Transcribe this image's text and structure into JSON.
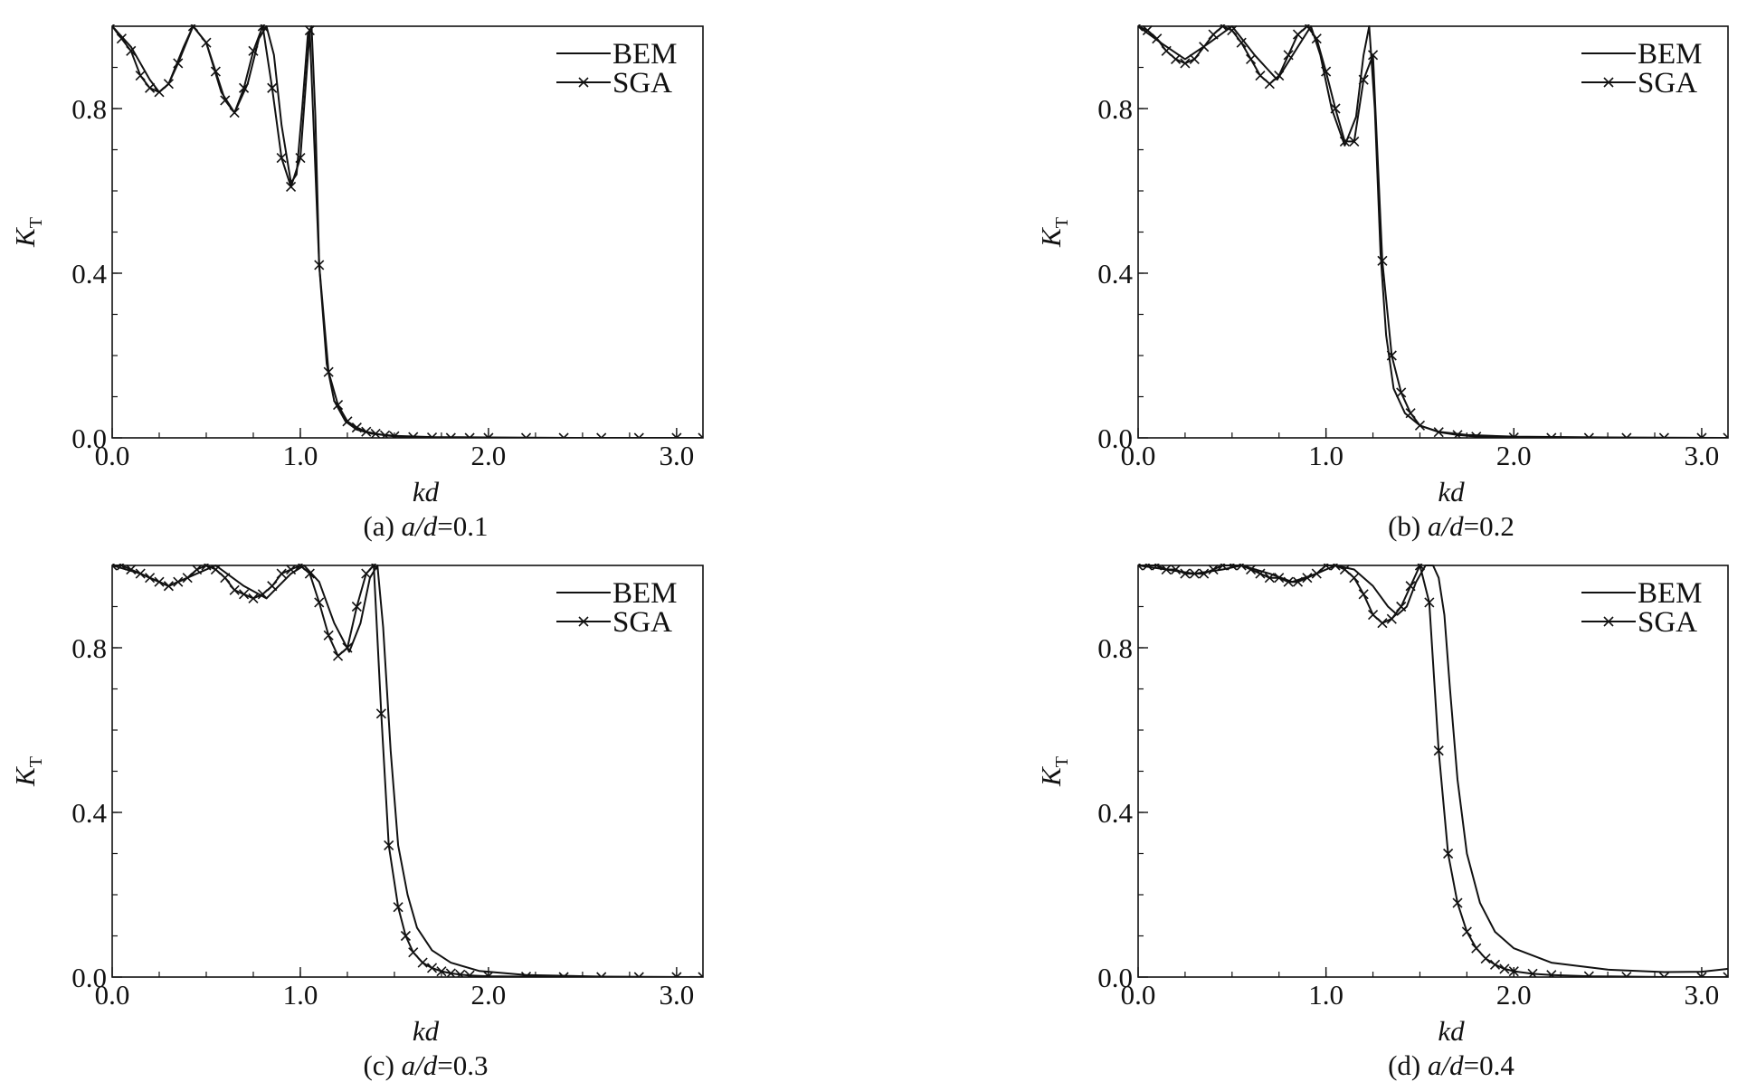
{
  "chart_data": [
    {
      "type": "line",
      "caption": {
        "label": "(a) ",
        "var": "a/d",
        "rest": "=0.1"
      },
      "xlabel": "kd",
      "ylabel": {
        "main": "K",
        "sub": "T"
      },
      "xlim": [
        0,
        3.14
      ],
      "ylim": [
        0,
        1.0
      ],
      "xticks": [
        "0.0",
        "1.0",
        "2.0",
        "3.0"
      ],
      "yticks": [
        "0.0",
        "0.4",
        "0.8"
      ],
      "legend": {
        "position": "top-right",
        "entries": [
          "BEM",
          "SGA"
        ]
      },
      "series": [
        {
          "name": "BEM",
          "marker": "none",
          "x": [
            0.0,
            0.1,
            0.2,
            0.25,
            0.3,
            0.38,
            0.43,
            0.5,
            0.58,
            0.65,
            0.72,
            0.78,
            0.82,
            0.86,
            0.9,
            0.95,
            0.98,
            1.01,
            1.04,
            1.06,
            1.08,
            1.1,
            1.14,
            1.18,
            1.24,
            1.3,
            1.38,
            1.5,
            1.7,
            2.0,
            2.5,
            3.14
          ],
          "y": [
            1.0,
            0.95,
            0.87,
            0.84,
            0.86,
            0.95,
            1.0,
            0.96,
            0.84,
            0.79,
            0.86,
            0.97,
            1.0,
            0.93,
            0.76,
            0.62,
            0.64,
            0.8,
            0.98,
            1.0,
            0.78,
            0.42,
            0.18,
            0.09,
            0.04,
            0.02,
            0.01,
            0.005,
            0.002,
            0.001,
            0.0,
            0.0
          ]
        },
        {
          "name": "SGA",
          "marker": "x",
          "x": [
            0.0,
            0.05,
            0.1,
            0.15,
            0.2,
            0.25,
            0.3,
            0.35,
            0.43,
            0.5,
            0.55,
            0.6,
            0.65,
            0.7,
            0.75,
            0.8,
            0.85,
            0.9,
            0.95,
            1.0,
            1.05,
            1.1,
            1.15,
            1.2,
            1.25,
            1.3,
            1.35,
            1.4,
            1.45,
            1.5,
            1.6,
            1.7,
            1.8,
            1.9,
            2.0,
            2.2,
            2.4,
            2.6,
            2.8,
            3.0,
            3.14
          ],
          "y": [
            1.0,
            0.97,
            0.94,
            0.88,
            0.85,
            0.84,
            0.86,
            0.91,
            1.0,
            0.96,
            0.89,
            0.82,
            0.79,
            0.85,
            0.94,
            1.0,
            0.85,
            0.68,
            0.61,
            0.68,
            0.99,
            0.42,
            0.16,
            0.08,
            0.04,
            0.025,
            0.015,
            0.01,
            0.006,
            0.004,
            0.002,
            0.001,
            0.0,
            0.0,
            0.0,
            0.0,
            0.0,
            0.0,
            0.0,
            0.0,
            0.0
          ]
        }
      ]
    },
    {
      "type": "line",
      "caption": {
        "label": "(b) ",
        "var": "a/d",
        "rest": "=0.2"
      },
      "xlabel": "kd",
      "ylabel": {
        "main": "K",
        "sub": "T"
      },
      "xlim": [
        0,
        3.14
      ],
      "ylim": [
        0,
        1.0
      ],
      "xticks": [
        "0.0",
        "1.0",
        "2.0",
        "3.0"
      ],
      "yticks": [
        "0.0",
        "0.4",
        "0.8"
      ],
      "legend": {
        "position": "top-right",
        "entries": [
          "BEM",
          "SGA"
        ]
      },
      "series": [
        {
          "name": "BEM",
          "marker": "none",
          "x": [
            0.0,
            0.12,
            0.25,
            0.38,
            0.5,
            0.62,
            0.74,
            0.85,
            0.92,
            0.97,
            1.03,
            1.1,
            1.16,
            1.2,
            1.23,
            1.26,
            1.29,
            1.32,
            1.36,
            1.42,
            1.5,
            1.6,
            1.75,
            2.0,
            2.5,
            3.14
          ],
          "y": [
            1.0,
            0.96,
            0.92,
            0.96,
            1.0,
            0.93,
            0.87,
            0.95,
            1.0,
            0.93,
            0.8,
            0.71,
            0.78,
            0.93,
            1.0,
            0.8,
            0.45,
            0.25,
            0.12,
            0.06,
            0.03,
            0.015,
            0.007,
            0.003,
            0.001,
            0.0
          ]
        },
        {
          "name": "SGA",
          "marker": "x",
          "x": [
            0.0,
            0.05,
            0.1,
            0.15,
            0.2,
            0.25,
            0.3,
            0.35,
            0.4,
            0.45,
            0.5,
            0.55,
            0.6,
            0.65,
            0.7,
            0.75,
            0.8,
            0.85,
            0.9,
            0.95,
            1.0,
            1.05,
            1.1,
            1.15,
            1.2,
            1.25,
            1.3,
            1.35,
            1.4,
            1.45,
            1.5,
            1.6,
            1.7,
            1.8,
            2.0,
            2.2,
            2.4,
            2.6,
            2.8,
            3.0,
            3.14
          ],
          "y": [
            1.0,
            0.99,
            0.97,
            0.94,
            0.92,
            0.91,
            0.92,
            0.95,
            0.98,
            1.0,
            0.99,
            0.96,
            0.92,
            0.88,
            0.86,
            0.88,
            0.93,
            0.98,
            1.0,
            0.97,
            0.89,
            0.8,
            0.72,
            0.72,
            0.87,
            0.93,
            0.43,
            0.2,
            0.11,
            0.06,
            0.03,
            0.014,
            0.007,
            0.003,
            0.001,
            0.0,
            0.0,
            0.0,
            0.0,
            0.0,
            0.0
          ]
        }
      ]
    },
    {
      "type": "line",
      "caption": {
        "label": "(c) ",
        "var": "a/d",
        "rest": "=0.3"
      },
      "xlabel": "kd",
      "ylabel": {
        "main": "K",
        "sub": "T"
      },
      "xlim": [
        0,
        3.14
      ],
      "ylim": [
        0,
        1.0
      ],
      "xticks": [
        "0.0",
        "1.0",
        "2.0",
        "3.0"
      ],
      "yticks": [
        "0.0",
        "0.4",
        "0.8"
      ],
      "legend": {
        "position": "top-right",
        "entries": [
          "BEM",
          "SGA"
        ]
      },
      "series": [
        {
          "name": "BEM",
          "marker": "none",
          "x": [
            0.0,
            0.15,
            0.3,
            0.45,
            0.55,
            0.7,
            0.82,
            0.95,
            1.02,
            1.1,
            1.18,
            1.26,
            1.32,
            1.37,
            1.41,
            1.44,
            1.48,
            1.52,
            1.57,
            1.62,
            1.7,
            1.8,
            1.95,
            2.2,
            2.6,
            3.14
          ],
          "y": [
            1.0,
            0.98,
            0.95,
            0.98,
            1.0,
            0.95,
            0.92,
            0.98,
            1.0,
            0.96,
            0.86,
            0.79,
            0.86,
            0.97,
            1.0,
            0.85,
            0.55,
            0.32,
            0.2,
            0.12,
            0.065,
            0.035,
            0.015,
            0.005,
            0.001,
            0.0
          ]
        },
        {
          "name": "SGA",
          "marker": "x",
          "x": [
            0.0,
            0.05,
            0.1,
            0.15,
            0.2,
            0.25,
            0.3,
            0.35,
            0.4,
            0.45,
            0.5,
            0.55,
            0.6,
            0.65,
            0.7,
            0.75,
            0.8,
            0.85,
            0.9,
            0.95,
            1.0,
            1.05,
            1.1,
            1.15,
            1.2,
            1.25,
            1.3,
            1.35,
            1.39,
            1.43,
            1.47,
            1.52,
            1.56,
            1.6,
            1.65,
            1.7,
            1.75,
            1.8,
            1.85,
            1.9,
            2.0,
            2.2,
            2.4,
            2.6,
            2.8,
            3.0,
            3.14
          ],
          "y": [
            1.0,
            1.0,
            0.99,
            0.98,
            0.97,
            0.96,
            0.95,
            0.96,
            0.97,
            0.99,
            1.0,
            0.99,
            0.97,
            0.94,
            0.93,
            0.92,
            0.93,
            0.95,
            0.98,
            0.99,
            1.0,
            0.98,
            0.91,
            0.83,
            0.78,
            0.8,
            0.9,
            0.98,
            1.0,
            0.64,
            0.32,
            0.17,
            0.1,
            0.06,
            0.035,
            0.022,
            0.014,
            0.009,
            0.006,
            0.004,
            0.002,
            0.001,
            0.0,
            0.0,
            0.0,
            0.0,
            0.0
          ]
        }
      ]
    },
    {
      "type": "line",
      "caption": {
        "label": "(d) ",
        "var": "a/d",
        "rest": "=0.4"
      },
      "xlabel": "kd",
      "ylabel": {
        "main": "K",
        "sub": "T"
      },
      "xlim": [
        0,
        3.14
      ],
      "ylim": [
        0,
        1.0
      ],
      "xticks": [
        "0.0",
        "1.0",
        "2.0",
        "3.0"
      ],
      "yticks": [
        "0.0",
        "0.4",
        "0.8"
      ],
      "legend": {
        "position": "top-right",
        "entries": [
          "BEM",
          "SGA"
        ]
      },
      "series": [
        {
          "name": "BEM",
          "marker": "none",
          "x": [
            0.0,
            0.15,
            0.3,
            0.45,
            0.55,
            0.7,
            0.82,
            0.95,
            1.05,
            1.15,
            1.25,
            1.33,
            1.38,
            1.43,
            1.48,
            1.53,
            1.57,
            1.6,
            1.63,
            1.66,
            1.7,
            1.75,
            1.82,
            1.9,
            2.0,
            2.2,
            2.5,
            2.8,
            3.0,
            3.14
          ],
          "y": [
            1.0,
            0.99,
            0.98,
            0.99,
            1.0,
            0.98,
            0.96,
            0.98,
            1.0,
            0.99,
            0.95,
            0.9,
            0.88,
            0.9,
            0.96,
            1.0,
            1.0,
            0.97,
            0.88,
            0.7,
            0.48,
            0.3,
            0.18,
            0.11,
            0.07,
            0.035,
            0.018,
            0.012,
            0.013,
            0.02
          ]
        },
        {
          "name": "SGA",
          "marker": "x",
          "x": [
            0.0,
            0.05,
            0.1,
            0.15,
            0.2,
            0.25,
            0.3,
            0.35,
            0.4,
            0.45,
            0.5,
            0.55,
            0.6,
            0.65,
            0.7,
            0.75,
            0.8,
            0.85,
            0.9,
            0.95,
            1.0,
            1.05,
            1.1,
            1.15,
            1.2,
            1.25,
            1.3,
            1.35,
            1.4,
            1.45,
            1.5,
            1.55,
            1.6,
            1.65,
            1.7,
            1.75,
            1.8,
            1.85,
            1.9,
            1.95,
            2.0,
            2.1,
            2.2,
            2.4,
            2.6,
            2.8,
            3.0,
            3.14
          ],
          "y": [
            1.0,
            1.0,
            1.0,
            0.99,
            0.99,
            0.98,
            0.98,
            0.98,
            0.99,
            1.0,
            1.0,
            1.0,
            0.99,
            0.98,
            0.97,
            0.97,
            0.96,
            0.96,
            0.97,
            0.98,
            1.0,
            1.0,
            0.99,
            0.97,
            0.93,
            0.88,
            0.86,
            0.87,
            0.9,
            0.95,
            1.0,
            0.91,
            0.55,
            0.3,
            0.18,
            0.11,
            0.07,
            0.045,
            0.03,
            0.02,
            0.014,
            0.008,
            0.005,
            0.002,
            0.001,
            0.0,
            0.0,
            0.0
          ]
        }
      ]
    }
  ]
}
